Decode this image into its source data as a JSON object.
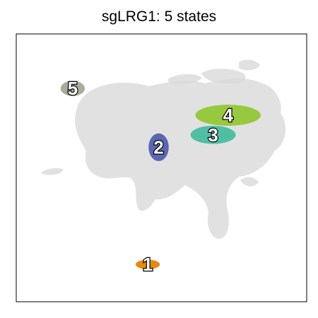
{
  "chart_data": {
    "type": "scatter",
    "title": "sgLRG1: 5 states",
    "xlabel": "",
    "ylabel": "",
    "grid": false,
    "legend": "none",
    "background_color": "#dadada",
    "states": [
      {
        "label": "1",
        "color": "#e8890c",
        "x": [
          -3.2,
          -0.2
        ],
        "y": [
          -10.6,
          -9.6
        ]
      },
      {
        "label": "2",
        "color": "#5b67b2",
        "x": [
          -1.6,
          0.9
        ],
        "y": [
          0.7,
          3.6
        ]
      },
      {
        "label": "3",
        "color": "#4fbfa4",
        "x": [
          3.6,
          9.2
        ],
        "y": [
          2.5,
          4.4
        ]
      },
      {
        "label": "4",
        "color": "#97c93e",
        "x": [
          4.2,
          12.3
        ],
        "y": [
          4.4,
          6.6
        ]
      },
      {
        "label": "5",
        "color": "#a7ad9b",
        "x": [
          -12.5,
          -9.5
        ],
        "y": [
          7.5,
          9.1
        ]
      }
    ],
    "xlim": [
      -18,
      18
    ],
    "ylim": [
      -14,
      14
    ]
  }
}
